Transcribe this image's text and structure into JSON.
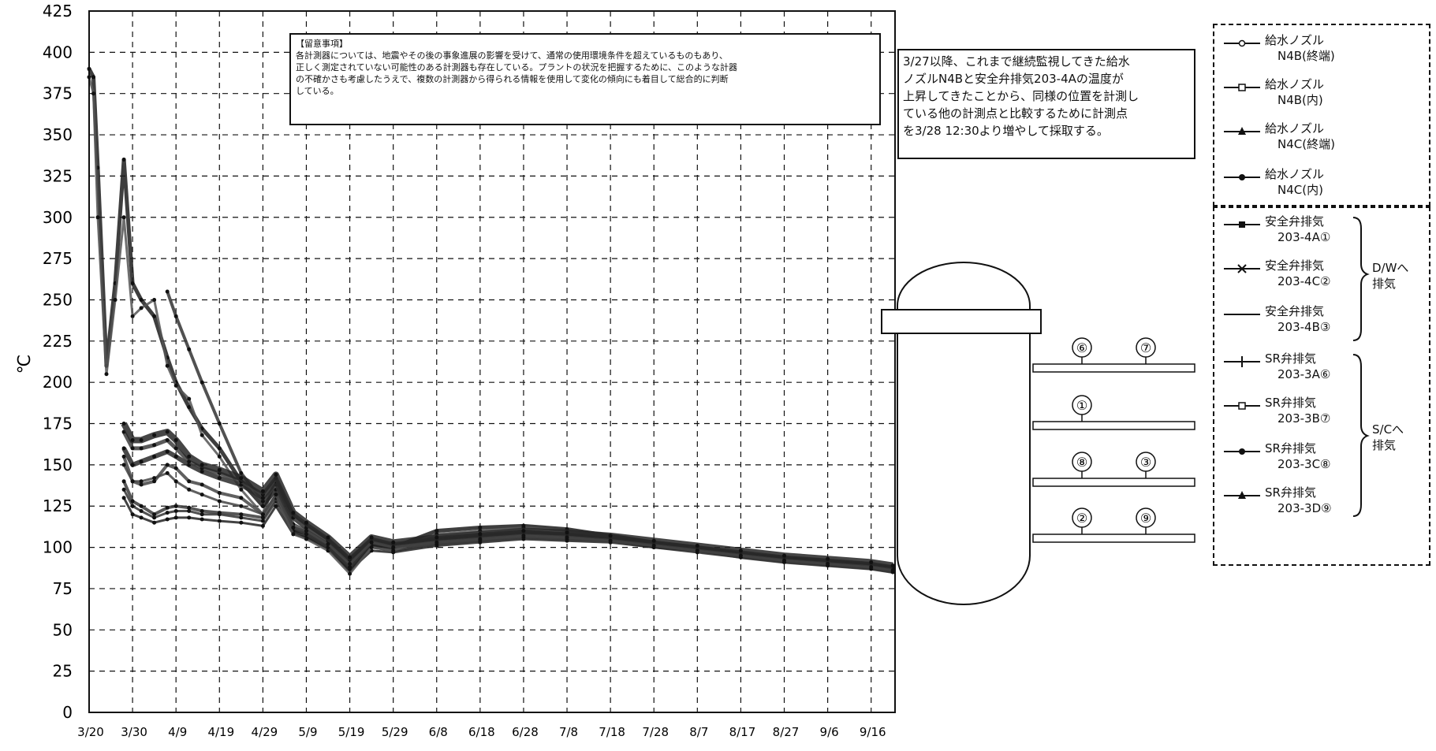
{
  "chart_data": {
    "type": "line",
    "ylabel": "℃",
    "xlabel": "",
    "ylim": [
      0,
      425
    ],
    "y_ticks": [
      0,
      25,
      50,
      75,
      100,
      125,
      150,
      175,
      200,
      225,
      250,
      275,
      300,
      325,
      350,
      375,
      400,
      425
    ],
    "x_ticks": [
      "3/20",
      "3/30",
      "4/9",
      "4/19",
      "4/29",
      "5/9",
      "5/19",
      "5/29",
      "6/8",
      "6/18",
      "6/28",
      "7/8",
      "7/18",
      "7/28",
      "8/7",
      "8/17",
      "8/27",
      "9/6",
      "9/16"
    ],
    "grid": true,
    "x": [
      "3/20",
      "3/21",
      "3/22",
      "3/24",
      "3/26",
      "3/28",
      "3/30",
      "4/1",
      "4/4",
      "4/7",
      "4/9",
      "4/12",
      "4/15",
      "4/19",
      "4/24",
      "4/29",
      "5/2",
      "5/6",
      "5/9",
      "5/14",
      "5/19",
      "5/24",
      "5/29",
      "6/8",
      "6/18",
      "6/28",
      "7/8",
      "7/18",
      "7/28",
      "8/7",
      "8/17",
      "8/27",
      "9/6",
      "9/16",
      "9/21"
    ],
    "series": [
      {
        "name": "給水ノズルN4B(終端)",
        "values": [
          null,
          null,
          null,
          null,
          null,
          135,
          125,
          122,
          118,
          121,
          122,
          122,
          120,
          120,
          118,
          116,
          128,
          110,
          108,
          100,
          88,
          100,
          98,
          102,
          104,
          106,
          105,
          104,
          100,
          98,
          95,
          92,
          90,
          88,
          86
        ]
      },
      {
        "name": "給水ノズルN4B(内)",
        "values": [
          null,
          null,
          null,
          null,
          null,
          155,
          140,
          138,
          140,
          150,
          148,
          140,
          138,
          133,
          130,
          120,
          142,
          114,
          110,
          102,
          92,
          102,
          100,
          103,
          105,
          107,
          106,
          104,
          102,
          100,
          96,
          94,
          92,
          90,
          88
        ]
      },
      {
        "name": "給水ノズルN4C(終端)",
        "values": [
          null,
          null,
          null,
          null,
          null,
          130,
          120,
          118,
          115,
          117,
          118,
          118,
          117,
          116,
          115,
          113,
          125,
          108,
          106,
          99,
          86,
          98,
          97,
          101,
          103,
          105,
          104,
          103,
          100,
          97,
          94,
          91,
          89,
          87,
          85
        ]
      },
      {
        "name": "給水ノズルN4C(内)",
        "values": [
          null,
          null,
          null,
          null,
          null,
          140,
          128,
          125,
          120,
          124,
          125,
          124,
          122,
          121,
          120,
          118,
          130,
          112,
          109,
          101,
          90,
          101,
          99,
          102,
          104,
          106,
          105,
          104,
          101,
          99,
          95,
          93,
          91,
          89,
          87
        ]
      },
      {
        "name": "安全弁排気203-4A①",
        "values": [
          390,
          385,
          330,
          210,
          260,
          335,
          260,
          250,
          240,
          215,
          200,
          185,
          172,
          160,
          140,
          125,
          135,
          110,
          106,
          100,
          86,
          102,
          100,
          110,
          112,
          113,
          111,
          107,
          103,
          100,
          96,
          92,
          90,
          88,
          86
        ]
      },
      {
        "name": "安全弁排気203-4C②",
        "values": [
          385,
          375,
          300,
          205,
          250,
          300,
          240,
          245,
          250,
          210,
          198,
          190,
          168,
          155,
          135,
          120,
          132,
          108,
          105,
          98,
          84,
          100,
          98,
          108,
          110,
          112,
          110,
          106,
          102,
          99,
          95,
          91,
          89,
          87,
          85
        ]
      },
      {
        "name": "安全弁排気203-4B③",
        "values": [
          null,
          null,
          null,
          null,
          null,
          null,
          null,
          null,
          null,
          255,
          240,
          220,
          200,
          175,
          145,
          128,
          138,
          112,
          108,
          100,
          88,
          103,
          100,
          106,
          108,
          110,
          108,
          105,
          101,
          98,
          94,
          91,
          89,
          87,
          85
        ]
      },
      {
        "name": "SR弁排気203-3A⑥",
        "values": [
          null,
          null,
          null,
          null,
          null,
          160,
          150,
          152,
          155,
          158,
          155,
          150,
          146,
          142,
          138,
          130,
          140,
          118,
          112,
          104,
          92,
          104,
          101,
          104,
          106,
          108,
          107,
          105,
          102,
          99,
          96,
          93,
          91,
          89,
          87
        ]
      },
      {
        "name": "SR弁排気203-3B⑦",
        "values": [
          null,
          null,
          null,
          null,
          null,
          170,
          160,
          160,
          162,
          165,
          160,
          152,
          148,
          145,
          140,
          132,
          142,
          120,
          114,
          105,
          93,
          105,
          102,
          105,
          107,
          109,
          108,
          106,
          103,
          100,
          97,
          94,
          92,
          90,
          88
        ]
      },
      {
        "name": "SR弁排気203-3C⑧",
        "values": [
          null,
          null,
          null,
          null,
          null,
          175,
          165,
          165,
          168,
          170,
          165,
          155,
          150,
          147,
          142,
          134,
          144,
          121,
          115,
          106,
          94,
          106,
          103,
          106,
          108,
          110,
          109,
          107,
          104,
          101,
          98,
          95,
          93,
          91,
          89
        ]
      },
      {
        "name": "SR弁排気203-3D⑨",
        "values": [
          null,
          null,
          null,
          null,
          null,
          150,
          140,
          140,
          142,
          145,
          140,
          135,
          132,
          128,
          125,
          120,
          132,
          112,
          110,
          102,
          90,
          103,
          100,
          103,
          105,
          107,
          106,
          104,
          101,
          98,
          95,
          92,
          90,
          88,
          86
        ]
      }
    ],
    "annotations": [
      "【留意事項】",
      "各計測器については、地震やその後の事象進展の影響を受けて、通常の使用環境条件を超えているものもあり、",
      "正しく測定されていない可能性のある計測器も存在している。プラントの状況を把握するために、このような計器",
      "の不確かさも考慮したうえで、複数の計測器から得られる情報を使用して変化の傾向にも着目して総合的に判断",
      "している。"
    ],
    "side_note": [
      "3/27以降、これまで継続監視してきた給水",
      "ノズルN4Bと安全弁排気203-4Aの温度が",
      "上昇してきたことから、同様の位置を計測し",
      "ている他の計測点と比較するために計測点",
      "を3/28 12:30より増やして採取する。"
    ]
  },
  "legend": [
    {
      "line1": "給水ノズル",
      "line2": "N4B(終端)",
      "marker": "circle"
    },
    {
      "line1": "給水ノズル",
      "line2": "N4B(内)",
      "marker": "square"
    },
    {
      "line1": "給水ノズル",
      "line2": "N4C(終端)",
      "marker": "triangle"
    },
    {
      "line1": "給水ノズル",
      "line2": "N4C(内)",
      "marker": "dot"
    },
    {
      "line1": "安全弁排気",
      "line2": "203-4A①",
      "marker": "square-filled"
    },
    {
      "line1": "安全弁排気",
      "line2": "203-4C②",
      "marker": "x"
    },
    {
      "line1": "安全弁排気",
      "line2": "203-4B③",
      "marker": "none"
    },
    {
      "line1": "SR弁排気",
      "line2": "203-3A⑥",
      "marker": "plus"
    },
    {
      "line1": "SR弁排気",
      "line2": "203-3B⑦",
      "marker": "square"
    },
    {
      "line1": "SR弁排気",
      "line2": "203-3C⑧",
      "marker": "dot"
    },
    {
      "line1": "SR弁排気",
      "line2": "203-3D⑨",
      "marker": "triangle"
    }
  ],
  "groups": {
    "dw": [
      "D/Wへ",
      "排気"
    ],
    "sc": [
      "S/Cへ",
      "排気"
    ]
  },
  "vessel_labels": [
    "⑥",
    "⑦",
    "①",
    "⑧",
    "③",
    "②",
    "⑨"
  ]
}
